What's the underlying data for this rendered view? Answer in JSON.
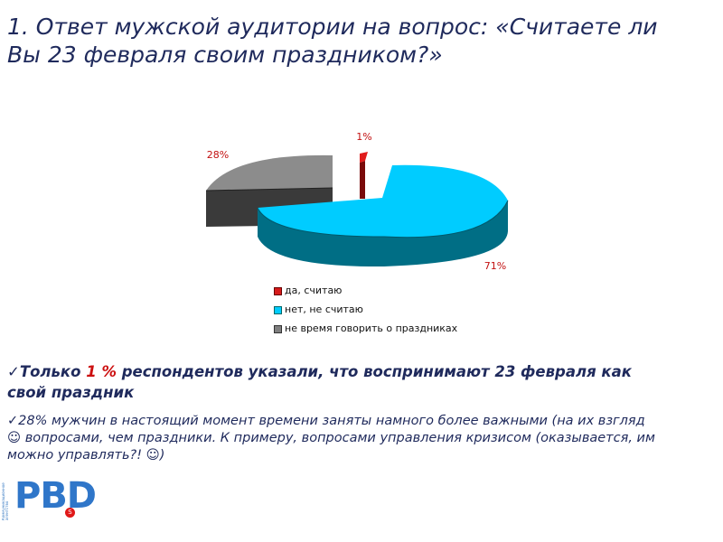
{
  "title": {
    "line1": "1. Ответ мужской аудитории на вопрос: «Считаете ли",
    "line2": "Вы 23 февраля своим праздником?»"
  },
  "chart_data": {
    "type": "pie",
    "categories": [
      "да, считаю",
      "нет, не считаю",
      "не время говорить о праздниках"
    ],
    "values": [
      1,
      71,
      28
    ],
    "labels": [
      "1%",
      "71%",
      "28%"
    ],
    "colors": [
      "#d61a1a",
      "#00ccff",
      "#7f7f7f"
    ],
    "legend_position": "bottom"
  },
  "bullets": {
    "b1_pre": "Только ",
    "b1_hl": "1 %",
    "b1_post": " респондентов указали, что воспринимают 23 февраля как",
    "b1_line2": "свой праздник",
    "b2_line1": "28% мужчин в настоящий момент времени заняты намного более важными (на их взгляд",
    "b2_line2": "☺ вопросами, чем праздники. К примеру, вопросами управления кризисом (оказывается, им",
    "b2_line3": "можно управлять?! ☺)"
  },
  "logo": {
    "text": "PBD",
    "side_text": "Коммуникационное агентство",
    "badge": "S"
  },
  "icons": {
    "bullet": "checkmark-icon"
  }
}
